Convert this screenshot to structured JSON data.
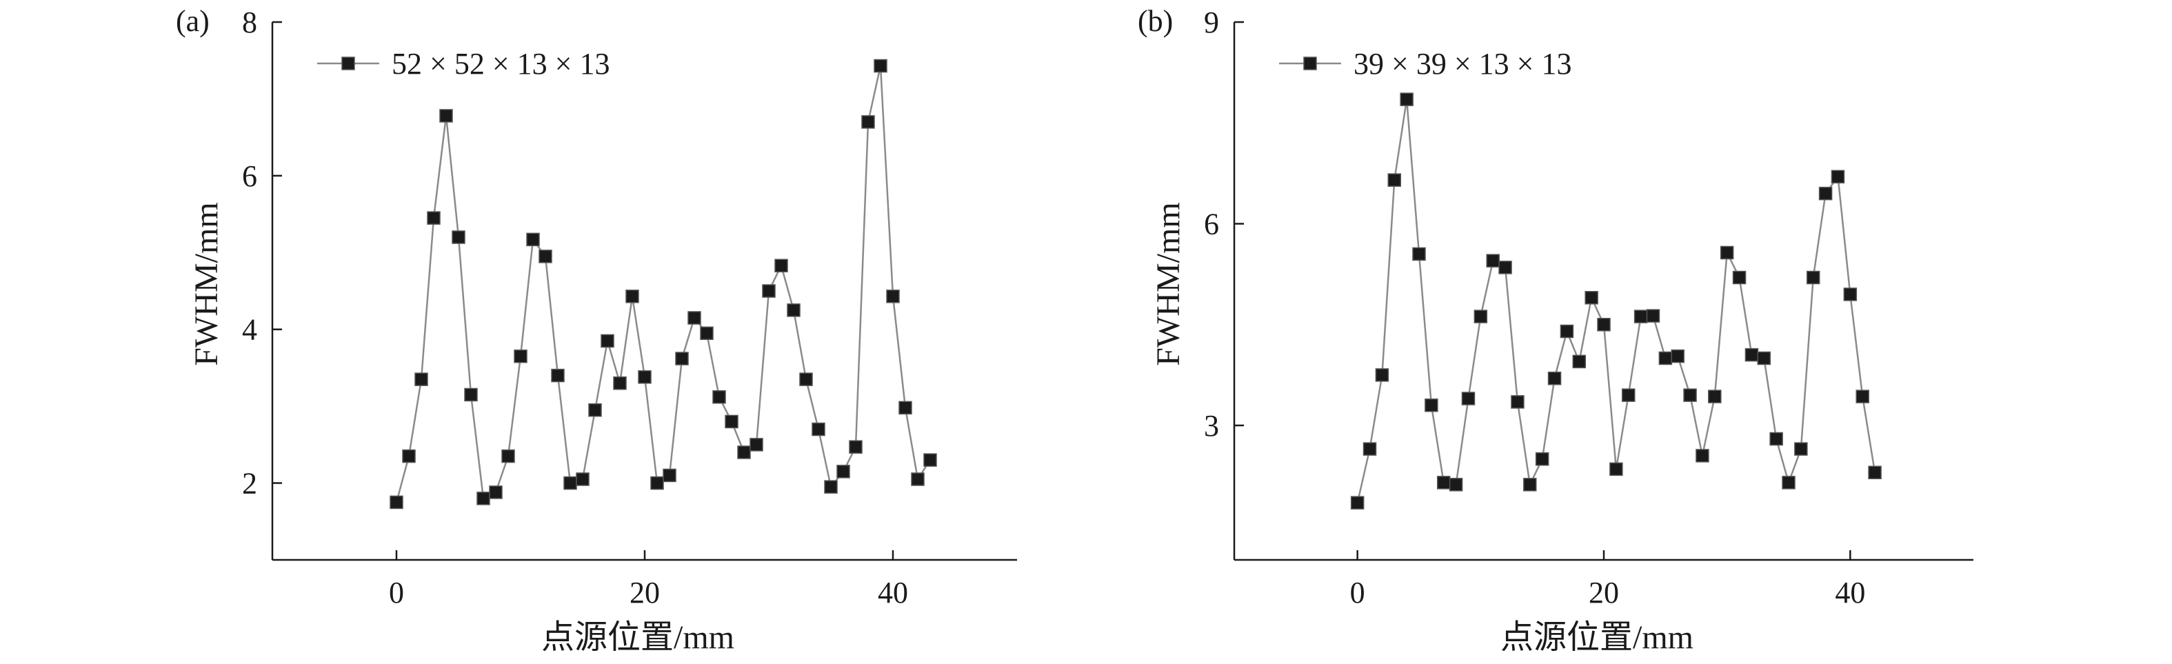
{
  "chart_data": [
    {
      "type": "line",
      "panel_label": "(a)",
      "xlabel": "点源位置/mm",
      "ylabel": "FWHM/mm",
      "xlim": [
        -10,
        50
      ],
      "ylim": [
        1,
        8
      ],
      "xticks": [
        0,
        20,
        40
      ],
      "yticks": [
        2,
        4,
        6,
        8
      ],
      "line_color": "#8a8a8a",
      "marker_color": "#1a1a1a",
      "legend_position": "top-left",
      "series": [
        {
          "name": "52 × 52 × 13 × 13",
          "x": [
            0,
            1,
            2,
            3,
            4,
            5,
            6,
            7,
            8,
            9,
            10,
            11,
            12,
            13,
            14,
            15,
            16,
            17,
            18,
            19,
            20,
            21,
            22,
            23,
            24,
            25,
            26,
            27,
            28,
            29,
            30,
            31,
            32,
            33,
            34,
            35,
            36,
            37,
            38,
            39,
            40,
            41,
            42,
            43
          ],
          "values": [
            1.75,
            2.35,
            3.35,
            5.45,
            6.78,
            5.2,
            3.15,
            1.8,
            1.88,
            2.35,
            3.65,
            5.17,
            4.95,
            3.4,
            2.0,
            2.05,
            2.95,
            3.85,
            3.3,
            4.43,
            3.38,
            2.0,
            2.1,
            3.62,
            4.15,
            3.95,
            3.12,
            2.8,
            2.4,
            2.5,
            4.5,
            4.83,
            4.25,
            3.35,
            2.7,
            1.95,
            2.15,
            2.47,
            6.7,
            7.43,
            4.43,
            2.98,
            2.05,
            2.3
          ]
        }
      ]
    },
    {
      "type": "line",
      "panel_label": "(b)",
      "xlabel": "点源位置/mm",
      "ylabel": "FWHM/mm",
      "xlim": [
        -10,
        50
      ],
      "ylim": [
        1,
        9
      ],
      "xticks": [
        0,
        20,
        40
      ],
      "yticks": [
        3,
        6,
        9
      ],
      "line_color": "#8a8a8a",
      "marker_color": "#1a1a1a",
      "legend_position": "top-left",
      "series": [
        {
          "name": "39 × 39 × 13 × 13",
          "x": [
            0,
            1,
            2,
            3,
            4,
            5,
            6,
            7,
            8,
            9,
            10,
            11,
            12,
            13,
            14,
            15,
            16,
            17,
            18,
            19,
            20,
            21,
            22,
            23,
            24,
            25,
            26,
            27,
            28,
            29,
            30,
            31,
            32,
            33,
            34,
            35,
            36,
            37,
            38,
            39,
            40,
            41,
            42
          ],
          "values": [
            1.85,
            2.65,
            3.75,
            6.65,
            7.85,
            5.55,
            3.3,
            2.15,
            2.12,
            3.4,
            4.62,
            5.45,
            5.35,
            3.35,
            2.12,
            2.5,
            3.7,
            4.4,
            3.95,
            4.9,
            4.5,
            2.35,
            3.45,
            4.62,
            4.63,
            4.0,
            4.03,
            3.45,
            2.55,
            3.43,
            5.57,
            5.2,
            4.05,
            4.0,
            2.8,
            2.15,
            2.65,
            5.2,
            6.45,
            6.7,
            4.95,
            3.43,
            2.3
          ]
        }
      ]
    }
  ]
}
